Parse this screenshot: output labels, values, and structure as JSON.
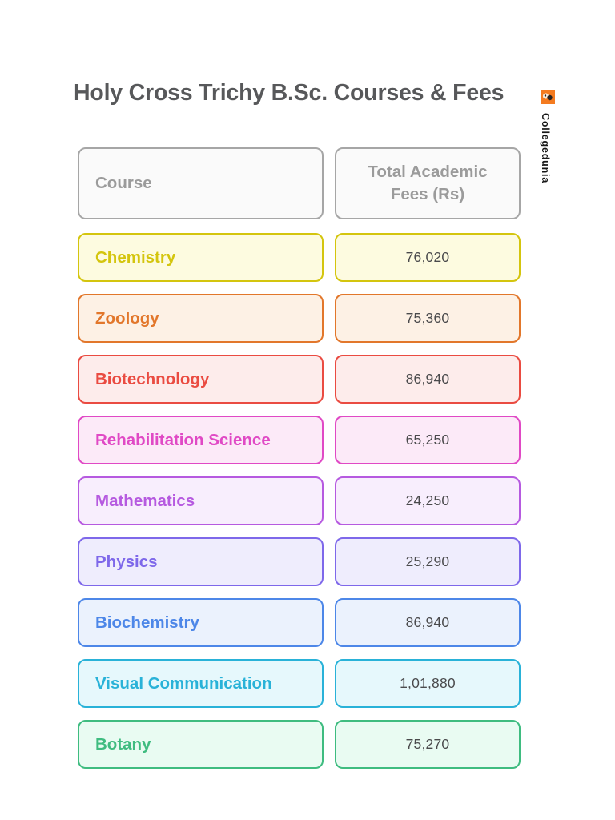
{
  "page": {
    "title": "Holy Cross Trichy B.Sc. Courses & Fees",
    "watermark": "Collegedunia",
    "brand_color": "#f47b20"
  },
  "table": {
    "headers": {
      "course": "Course",
      "fees": "Total Academic Fees (Rs)"
    },
    "header_style": {
      "border": "#a6a6a6",
      "text": "#9b9b9b",
      "bg": "#fafafa"
    },
    "rows": [
      {
        "course": "Chemistry",
        "fee": "76,020",
        "color": "#d4c50e",
        "bg": "#fdfbe0"
      },
      {
        "course": "Zoology",
        "fee": "75,360",
        "color": "#e2772b",
        "bg": "#fdf1e5"
      },
      {
        "course": "Biotechnology",
        "fee": "86,940",
        "color": "#ea4b41",
        "bg": "#fdeceb"
      },
      {
        "course": "Rehabilitation Science",
        "fee": "65,250",
        "color": "#e049c5",
        "bg": "#fceaf8"
      },
      {
        "course": "Mathematics",
        "fee": "24,250",
        "color": "#b65ae0",
        "bg": "#f8eefd"
      },
      {
        "course": "Physics",
        "fee": "25,290",
        "color": "#7e68ea",
        "bg": "#efedfd"
      },
      {
        "course": "Biochemistry",
        "fee": "86,940",
        "color": "#4d87e8",
        "bg": "#ebf2fd"
      },
      {
        "course": "Visual Communication",
        "fee": "1,01,880",
        "color": "#29b2d8",
        "bg": "#e6f8fc"
      },
      {
        "course": "Botany",
        "fee": "75,270",
        "color": "#3fbc80",
        "bg": "#e9fbf2"
      }
    ]
  },
  "chart_data": {
    "type": "table",
    "title": "Holy Cross Trichy B.Sc. Courses & Fees",
    "columns": [
      "Course",
      "Total Academic Fees (Rs)"
    ],
    "rows": [
      [
        "Chemistry",
        "76,020"
      ],
      [
        "Zoology",
        "75,360"
      ],
      [
        "Biotechnology",
        "86,940"
      ],
      [
        "Rehabilitation Science",
        "65,250"
      ],
      [
        "Mathematics",
        "24,250"
      ],
      [
        "Physics",
        "25,290"
      ],
      [
        "Biochemistry",
        "86,940"
      ],
      [
        "Visual Communication",
        "1,01,880"
      ],
      [
        "Botany",
        "75,270"
      ]
    ],
    "fees_numeric": [
      76020,
      75360,
      86940,
      65250,
      24250,
      25290,
      86940,
      101880,
      75270
    ],
    "legend_position": "none",
    "grid": false
  }
}
